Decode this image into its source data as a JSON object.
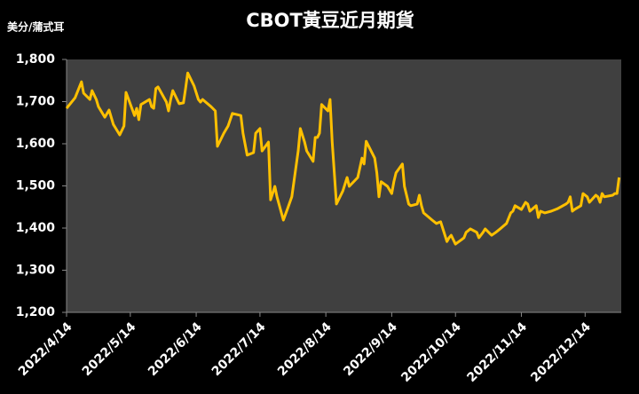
{
  "chart_data": {
    "type": "line",
    "title": "CBOT黃豆近月期貨",
    "y_label": "美分/蒲式耳",
    "color": "#ffc000",
    "grid": false,
    "ylim": [
      1200,
      1800
    ],
    "yticks": [
      {
        "value": 1200,
        "label": "1,200"
      },
      {
        "value": 1300,
        "label": "1,300"
      },
      {
        "value": 1400,
        "label": "1,400"
      },
      {
        "value": 1500,
        "label": "1,500"
      },
      {
        "value": 1600,
        "label": "1,600"
      },
      {
        "value": 1700,
        "label": "1,700"
      },
      {
        "value": 1800,
        "label": "1,800"
      }
    ],
    "xlim": [
      "2022/4/14",
      "2022/12/31"
    ],
    "xticks": [
      "2022/4/14",
      "2022/5/14",
      "2022/6/14",
      "2022/7/14",
      "2022/8/14",
      "2022/9/14",
      "2022/10/14",
      "2022/11/14",
      "2022/12/14"
    ],
    "x": [
      "2022/4/14",
      "2022/4/18",
      "2022/4/21",
      "2022/4/22",
      "2022/4/25",
      "2022/4/26",
      "2022/4/28",
      "2022/4/29",
      "2022/5/2",
      "2022/5/4",
      "2022/5/6",
      "2022/5/9",
      "2022/5/11",
      "2022/5/12",
      "2022/5/16",
      "2022/5/17",
      "2022/5/18",
      "2022/5/19",
      "2022/5/23",
      "2022/5/24",
      "2022/5/25",
      "2022/5/26",
      "2022/5/27",
      "2022/5/31",
      "2022/6/1",
      "2022/6/2",
      "2022/6/3",
      "2022/6/6",
      "2022/6/8",
      "2022/6/9",
      "2022/6/10",
      "2022/6/13",
      "2022/6/15",
      "2022/6/16",
      "2022/6/17",
      "2022/6/21",
      "2022/6/23",
      "2022/6/24",
      "2022/6/27",
      "2022/6/29",
      "2022/7/1",
      "2022/7/5",
      "2022/7/6",
      "2022/7/8",
      "2022/7/11",
      "2022/7/12",
      "2022/7/14",
      "2022/7/15",
      "2022/7/18",
      "2022/7/19",
      "2022/7/21",
      "2022/7/22",
      "2022/7/25",
      "2022/7/27",
      "2022/7/29",
      "2022/8/1",
      "2022/8/2",
      "2022/8/4",
      "2022/8/5",
      "2022/8/8",
      "2022/8/9",
      "2022/8/10",
      "2022/8/11",
      "2022/8/12",
      "2022/8/15",
      "2022/8/16",
      "2022/8/17",
      "2022/8/19",
      "2022/8/22",
      "2022/8/24",
      "2022/8/25",
      "2022/8/29",
      "2022/8/31",
      "2022/9/1",
      "2022/9/2",
      "2022/9/6",
      "2022/9/7",
      "2022/9/8",
      "2022/9/9",
      "2022/9/12",
      "2022/9/14",
      "2022/9/15",
      "2022/9/16",
      "2022/9/19",
      "2022/9/20",
      "2022/9/22",
      "2022/9/23",
      "2022/9/26",
      "2022/9/27",
      "2022/9/28",
      "2022/9/29",
      "2022/10/3",
      "2022/10/5",
      "2022/10/7",
      "2022/10/10",
      "2022/10/11",
      "2022/10/12",
      "2022/10/14",
      "2022/10/17",
      "2022/10/18",
      "2022/10/19",
      "2022/10/21",
      "2022/10/24",
      "2022/10/25",
      "2022/10/27",
      "2022/10/28",
      "2022/10/31",
      "2022/11/2",
      "2022/11/4",
      "2022/11/7",
      "2022/11/9",
      "2022/11/10",
      "2022/11/11",
      "2022/11/14",
      "2022/11/16",
      "2022/11/17",
      "2022/11/18",
      "2022/11/21",
      "2022/11/22",
      "2022/11/23",
      "2022/11/25",
      "2022/11/28",
      "2022/11/30",
      "2022/12/1",
      "2022/12/5",
      "2022/12/6",
      "2022/12/7",
      "2022/12/8",
      "2022/12/9",
      "2022/12/12",
      "2022/12/13",
      "2022/12/15",
      "2022/12/16",
      "2022/12/19",
      "2022/12/20",
      "2022/12/21",
      "2022/12/22",
      "2022/12/23",
      "2022/12/27",
      "2022/12/28",
      "2022/12/29",
      "2022/12/30"
    ],
    "values": [
      1684,
      1709,
      1747,
      1720,
      1705,
      1726,
      1705,
      1688,
      1663,
      1680,
      1646,
      1621,
      1642,
      1722,
      1667,
      1684,
      1657,
      1693,
      1705,
      1688,
      1684,
      1731,
      1735,
      1699,
      1678,
      1705,
      1726,
      1695,
      1697,
      1731,
      1768,
      1737,
      1705,
      1699,
      1705,
      1688,
      1678,
      1594,
      1625,
      1642,
      1672,
      1667,
      1625,
      1573,
      1579,
      1625,
      1636,
      1583,
      1604,
      1467,
      1499,
      1474,
      1419,
      1446,
      1474,
      1583,
      1636,
      1604,
      1583,
      1558,
      1615,
      1615,
      1625,
      1693,
      1678,
      1705,
      1604,
      1457,
      1488,
      1520,
      1499,
      1520,
      1566,
      1552,
      1606,
      1566,
      1531,
      1474,
      1510,
      1499,
      1482,
      1510,
      1531,
      1552,
      1499,
      1457,
      1453,
      1457,
      1478,
      1453,
      1436,
      1419,
      1411,
      1415,
      1368,
      1377,
      1383,
      1362,
      1373,
      1377,
      1390,
      1398,
      1390,
      1377,
      1390,
      1398,
      1383,
      1390,
      1398,
      1411,
      1436,
      1440,
      1453,
      1444,
      1461,
      1457,
      1440,
      1453,
      1425,
      1440,
      1436,
      1440,
      1444,
      1446,
      1457,
      1461,
      1474,
      1440,
      1444,
      1453,
      1482,
      1474,
      1461,
      1478,
      1474,
      1461,
      1482,
      1474,
      1478,
      1482,
      1482,
      1520
    ]
  }
}
